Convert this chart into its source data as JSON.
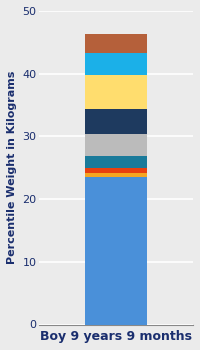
{
  "category": "Boy 9 years 9 months",
  "segments": [
    {
      "label": "bottom_blue",
      "value": 23.5,
      "color": "#4A90D9"
    },
    {
      "label": "orange",
      "value": 0.7,
      "color": "#F5A623"
    },
    {
      "label": "red",
      "value": 0.8,
      "color": "#E84010"
    },
    {
      "label": "teal",
      "value": 1.8,
      "color": "#1A7A9A"
    },
    {
      "label": "gray",
      "value": 3.5,
      "color": "#BBBBBB"
    },
    {
      "label": "dark_navy",
      "value": 4.0,
      "color": "#1E3A5F"
    },
    {
      "label": "yellow",
      "value": 5.5,
      "color": "#FFDD6E"
    },
    {
      "label": "cyan",
      "value": 3.5,
      "color": "#1BB0E8"
    },
    {
      "label": "brown",
      "value": 3.0,
      "color": "#B5603A"
    }
  ],
  "ylabel": "Percentile Weight in Kilograms",
  "ylim": [
    0,
    50
  ],
  "yticks": [
    0,
    10,
    20,
    30,
    40,
    50
  ],
  "background_color": "#EBEBEB",
  "plot_bg_color": "#EBEBEB",
  "label_color": "#1A2E6E",
  "tick_color": "#1A2E6E",
  "ylabel_fontsize": 8,
  "xlabel_fontsize": 9,
  "tick_fontsize": 8,
  "bar_width": 0.4
}
